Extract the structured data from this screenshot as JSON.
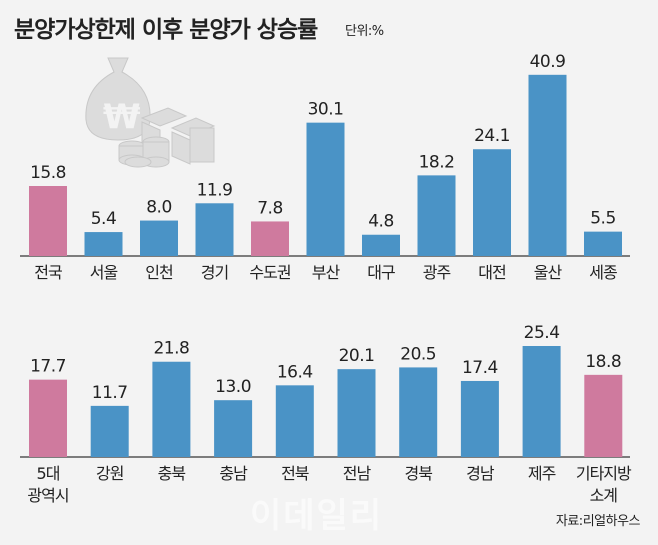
{
  "header": {
    "title": "분양가상한제 이후 분양가 상승률",
    "unit": "단위:%"
  },
  "footer": {
    "source": "자료:리얼하우스",
    "watermark": "이데일리"
  },
  "colors": {
    "highlight": "#cf7a9e",
    "regular": "#4a93c6",
    "axis": "#555555",
    "background": "#f3f3f3"
  },
  "chart_data": [
    {
      "type": "bar",
      "title": "분양가상한제 이후 분양가 상승률",
      "unit": "%",
      "categories": [
        "전국",
        "서울",
        "인천",
        "경기",
        "수도권",
        "부산",
        "대구",
        "광주",
        "대전",
        "울산",
        "세종"
      ],
      "values": [
        15.8,
        5.4,
        8.0,
        11.9,
        7.8,
        30.1,
        4.8,
        18.2,
        24.1,
        40.9,
        5.5
      ],
      "highlighted": [
        "전국",
        "수도권"
      ],
      "ylim": [
        0,
        42
      ],
      "grid": false
    },
    {
      "type": "bar",
      "categories": [
        "5대\n광역시",
        "강원",
        "충북",
        "충남",
        "전북",
        "전남",
        "경북",
        "경남",
        "제주",
        "기타지방\n소계"
      ],
      "values": [
        17.7,
        11.7,
        21.8,
        13.0,
        16.4,
        20.1,
        20.5,
        17.4,
        25.4,
        18.8
      ],
      "highlighted": [
        "5대\n광역시",
        "기타지방\n소계"
      ],
      "ylim": [
        0,
        42
      ],
      "grid": false
    }
  ]
}
